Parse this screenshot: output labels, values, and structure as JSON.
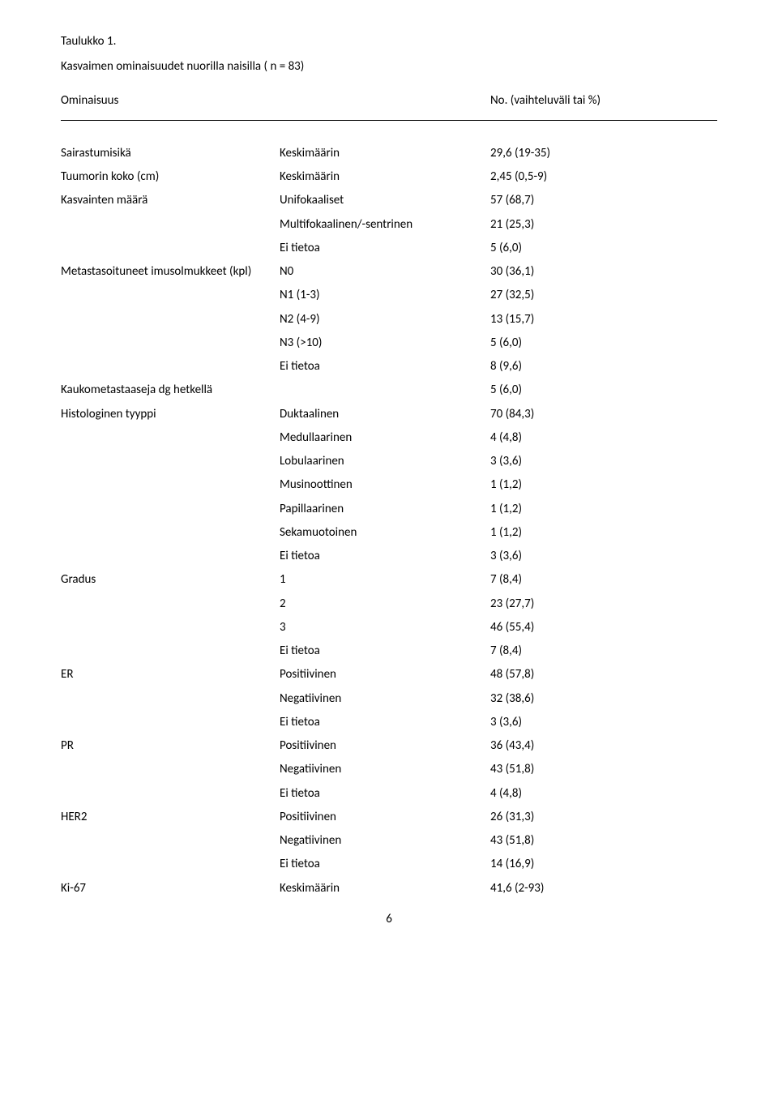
{
  "title": "Taulukko 1.",
  "subtitle": "Kasvaimen ominaisuudet nuorilla naisilla ( n = 83)",
  "header_ominaisuus": "Ominaisuus",
  "header_value": "No. (vaihteluväli tai %)",
  "page_number": "6",
  "rows": [
    {
      "c1": "Sairastumisikä",
      "c2": "Keskimäärin",
      "c3": "29,6 (19-35)"
    },
    {
      "c1": "Tuumorin koko (cm)",
      "c2": "Keskimäärin",
      "c3": "2,45 (0,5-9)"
    },
    {
      "c1": "Kasvainten määrä",
      "c2": "Unifokaaliset",
      "c3": "57 (68,7)"
    },
    {
      "c1": "",
      "c2": "Multifokaalinen/-sentrinen",
      "c3": "21 (25,3)"
    },
    {
      "c1": "",
      "c2": "Ei tietoa",
      "c3": "5 (6,0)"
    },
    {
      "c1": "Metastasoituneet imusolmukkeet (kpl)",
      "c2": "N0",
      "c3": "30 (36,1)"
    },
    {
      "c1": "",
      "c2": "N1 (1-3)",
      "c3": "27 (32,5)"
    },
    {
      "c1": "",
      "c2": "N2 (4-9)",
      "c3": "13 (15,7)"
    },
    {
      "c1": "",
      "c2": "N3 (>10)",
      "c3": "5 (6,0)"
    },
    {
      "c1": "",
      "c2": "Ei tietoa",
      "c3": "8 (9,6)"
    },
    {
      "c1": "Kaukometastaaseja dg hetkellä",
      "c2": "",
      "c3": "5 (6,0)"
    },
    {
      "c1": "Histologinen tyyppi",
      "c2": "Duktaalinen",
      "c3": "70 (84,3)"
    },
    {
      "c1": "",
      "c2": "Medullaarinen",
      "c3": "4 (4,8)"
    },
    {
      "c1": "",
      "c2": "Lobulaarinen",
      "c3": "3 (3,6)"
    },
    {
      "c1": "",
      "c2": "Musinoottinen",
      "c3": "1 (1,2)"
    },
    {
      "c1": "",
      "c2": "Papillaarinen",
      "c3": "1 (1,2)"
    },
    {
      "c1": "",
      "c2": "Sekamuotoinen",
      "c3": "1 (1,2)"
    },
    {
      "c1": "",
      "c2": "Ei tietoa",
      "c3": "3 (3,6)"
    },
    {
      "c1": "Gradus",
      "c2": "1",
      "c3": "7 (8,4)"
    },
    {
      "c1": "",
      "c2": "2",
      "c3": "23 (27,7)"
    },
    {
      "c1": "",
      "c2": "3",
      "c3": "46 (55,4)"
    },
    {
      "c1": "",
      "c2": "Ei tietoa",
      "c3": "7  (8,4)"
    },
    {
      "c1": "ER",
      "c2": "Positiivinen",
      "c3": "48 (57,8)"
    },
    {
      "c1": "",
      "c2": "Negatiivinen",
      "c3": "32 (38,6)"
    },
    {
      "c1": "",
      "c2": "Ei tietoa",
      "c3": "3 (3,6)"
    },
    {
      "c1": "PR",
      "c2": "Positiivinen",
      "c3": "36 (43,4)"
    },
    {
      "c1": "",
      "c2": "Negatiivinen",
      "c3": "43 (51,8)"
    },
    {
      "c1": "",
      "c2": "Ei tietoa",
      "c3": "4  (4,8)"
    },
    {
      "c1": "HER2",
      "c2": "Positiivinen",
      "c3": "26 (31,3)"
    },
    {
      "c1": "",
      "c2": "Negatiivinen",
      "c3": "43 (51,8)"
    },
    {
      "c1": "",
      "c2": "Ei tietoa",
      "c3": "14 (16,9)"
    },
    {
      "c1": "Ki-67",
      "c2": "Keskimäärin",
      "c3": "41,6 (2-93)"
    }
  ]
}
